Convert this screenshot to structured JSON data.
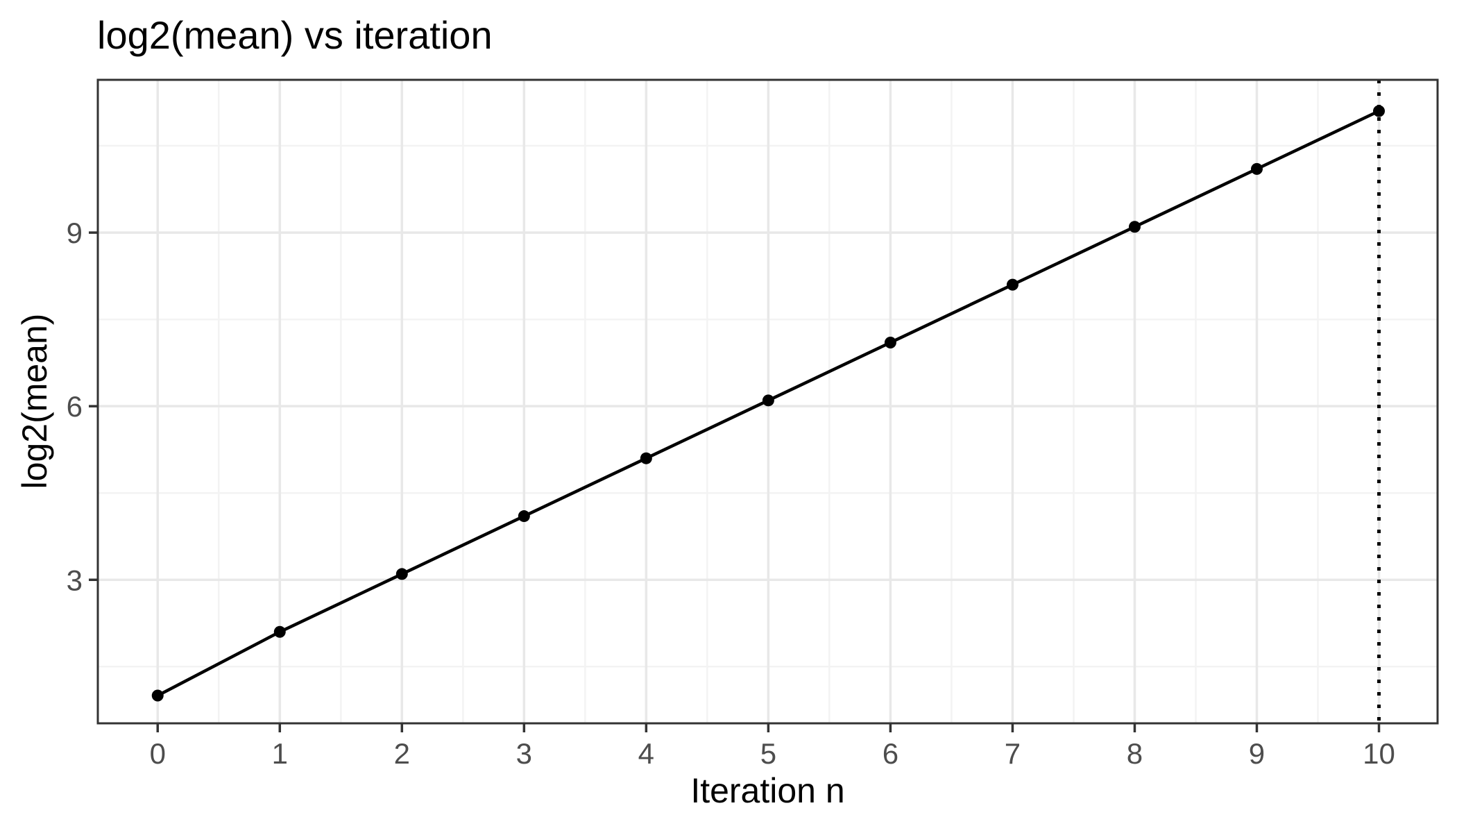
{
  "chart_data": {
    "type": "line",
    "title": "log2(mean) vs iteration",
    "xlabel": "Iteration n",
    "ylabel": "log2(mean)",
    "x": [
      0,
      1,
      2,
      3,
      4,
      5,
      6,
      7,
      8,
      9,
      10
    ],
    "y": [
      1.0,
      2.1,
      3.1,
      4.1,
      5.1,
      6.1,
      7.1,
      8.1,
      9.1,
      10.1,
      11.1
    ],
    "x_ticks": [
      0,
      1,
      2,
      3,
      4,
      5,
      6,
      7,
      8,
      9,
      10
    ],
    "y_ticks": [
      3,
      6,
      9
    ],
    "x_minor_gridlines": [
      0.5,
      1.5,
      2.5,
      3.5,
      4.5,
      5.5,
      6.5,
      7.5,
      8.5,
      9.5
    ],
    "y_minor_gridlines": [
      1.5,
      4.5,
      7.5,
      10.5
    ],
    "xlim": [
      -0.49,
      10.48
    ],
    "ylim": [
      0.52,
      11.64
    ],
    "grid": "on",
    "legend": "none",
    "annotations": [
      {
        "type": "vline",
        "x": 10,
        "style": "dotted",
        "color": "#000000"
      }
    ],
    "marker": "filled-circle",
    "colors": {
      "line": "#000000",
      "point": "#000000",
      "grid_major": "#e8e8e8",
      "grid_minor": "#f3f3f3",
      "panel_border": "#333333",
      "tick_mark": "#333333",
      "axis_text": "#4d4d4d",
      "title_text": "#000000",
      "background": "#ffffff"
    }
  }
}
